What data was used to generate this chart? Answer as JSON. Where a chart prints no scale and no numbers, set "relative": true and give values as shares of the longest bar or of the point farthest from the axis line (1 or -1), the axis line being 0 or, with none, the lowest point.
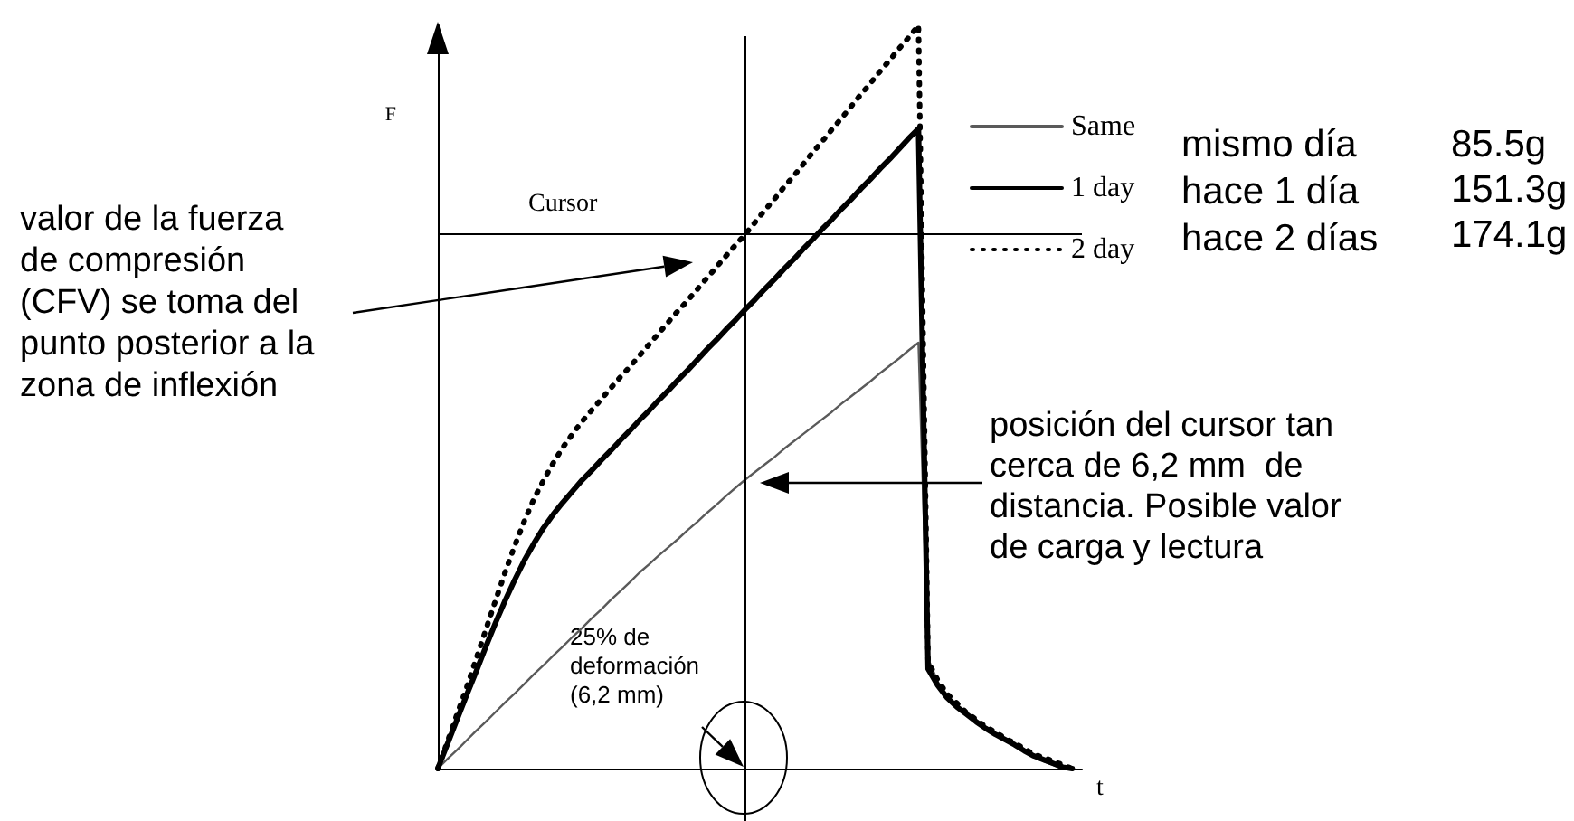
{
  "chart_data": {
    "type": "line",
    "relative": true,
    "xlabel": "t",
    "ylabel": "F",
    "categories": [
      null,
      null,
      null,
      null,
      null,
      null,
      null,
      null,
      null,
      null,
      null,
      null,
      null,
      null,
      null,
      null,
      null,
      null,
      null,
      null,
      null,
      null,
      null,
      null,
      null,
      null,
      null,
      null,
      null,
      null,
      null,
      null,
      null,
      null,
      null,
      null,
      null,
      null,
      null,
      null,
      null,
      null,
      null,
      null,
      null,
      null,
      null,
      null,
      null,
      null,
      null,
      null,
      null,
      null,
      null,
      null,
      null,
      null,
      null,
      null,
      null,
      null,
      null,
      null,
      null,
      null,
      null,
      null
    ],
    "series": [
      {
        "name": "Same",
        "color": "#5a5a5a",
        "line_style": "solid",
        "values": [
          0,
          0.013,
          0.025,
          0.038,
          0.051,
          0.063,
          0.076,
          0.089,
          0.101,
          0.114,
          0.127,
          0.139,
          0.152,
          0.164,
          0.177,
          0.189,
          0.202,
          0.214,
          0.227,
          0.239,
          0.251,
          0.264,
          0.275,
          0.287,
          0.298,
          0.309,
          0.321,
          0.332,
          0.344,
          0.355,
          0.367,
          0.378,
          0.389,
          0.399,
          0.409,
          0.419,
          0.43,
          0.44,
          0.45,
          0.46,
          0.47,
          0.48,
          0.491,
          0.501,
          0.511,
          0.521,
          0.532,
          0.542,
          0.552,
          0.563,
          0.573,
          0.148,
          0.117,
          0.097,
          0.083,
          0.073,
          0.063,
          0.054,
          0.046,
          0.039,
          0.032,
          0.024,
          0.017,
          0.01,
          0.005,
          0,
          null,
          null
        ]
      },
      {
        "name": "1 day",
        "color": "#000000",
        "line_style": "solid",
        "values": [
          0,
          0.033,
          0.066,
          0.099,
          0.131,
          0.164,
          0.196,
          0.226,
          0.254,
          0.28,
          0.303,
          0.324,
          0.342,
          0.358,
          0.373,
          0.388,
          0.401,
          0.415,
          0.428,
          0.442,
          0.455,
          0.469,
          0.482,
          0.496,
          0.509,
          0.523,
          0.536,
          0.55,
          0.564,
          0.577,
          0.591,
          0.604,
          0.618,
          0.631,
          0.645,
          0.658,
          0.672,
          0.685,
          0.699,
          0.712,
          0.726,
          0.739,
          0.753,
          0.766,
          0.78,
          0.793,
          0.807,
          0.82,
          0.834,
          0.848,
          0.861,
          0.134,
          0.112,
          0.095,
          0.083,
          0.073,
          0.063,
          0.054,
          0.046,
          0.039,
          0.032,
          0.024,
          0.017,
          0.012,
          0.007,
          0.002,
          0,
          null
        ]
      },
      {
        "name": "2 day",
        "color": "#000000",
        "line_style": "dotted",
        "values": [
          0,
          0.036,
          0.073,
          0.109,
          0.148,
          0.187,
          0.226,
          0.264,
          0.3,
          0.333,
          0.363,
          0.388,
          0.411,
          0.432,
          0.45,
          0.467,
          0.482,
          0.497,
          0.512,
          0.527,
          0.541,
          0.556,
          0.571,
          0.586,
          0.601,
          0.616,
          0.63,
          0.645,
          0.66,
          0.675,
          0.69,
          0.705,
          0.719,
          0.735,
          0.751,
          0.766,
          0.782,
          0.797,
          0.813,
          0.829,
          0.844,
          0.86,
          0.875,
          0.891,
          0.907,
          0.922,
          0.938,
          0.953,
          0.969,
          0.984,
          1,
          0.144,
          0.119,
          0.1,
          0.088,
          0.075,
          0.066,
          0.056,
          0.049,
          0.041,
          0.034,
          0.027,
          0.019,
          0.015,
          0.01,
          0.005,
          0,
          null
        ]
      }
    ],
    "ref_lines": [
      {
        "axis": "y",
        "value": 0.72,
        "label": "Cursor"
      }
    ],
    "annotations": [
      "valor de la fuerza\nde compresión\n(CFV) se toma del\npunto posterior a la\nzona de inflexión",
      "posición del cursor tan\ncerca de 6,2 mm  de\ndistancia. Posible valor\nde carga y lectura",
      "25% de\ndeformación\n(6,2 mm)",
      "mismo día",
      "85.5g",
      "hace 1 día",
      "151.3g",
      "hace 2 días",
      "174.1g"
    ],
    "legend": "top right",
    "grid": false,
    "marker": "none"
  }
}
